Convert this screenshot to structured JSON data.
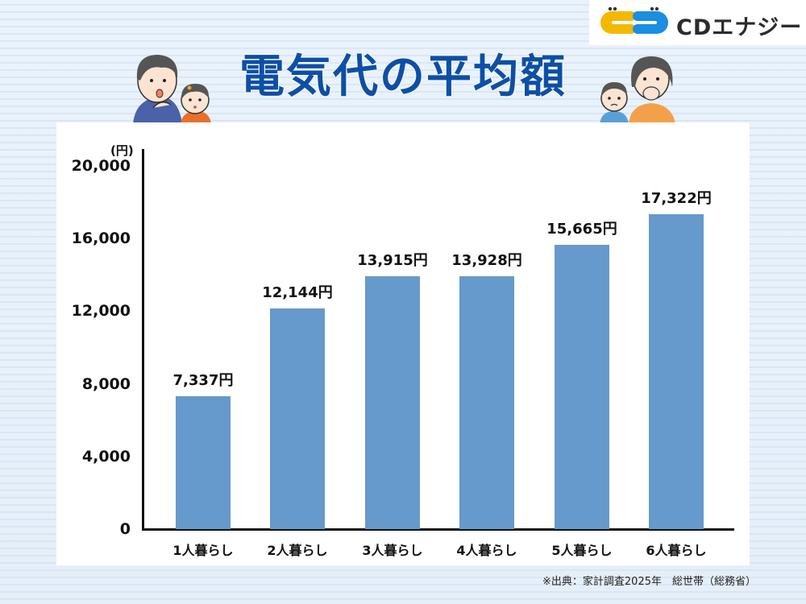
{
  "brand": {
    "name": "CDエナジー",
    "colors": {
      "yellow": "#f5b800",
      "blue": "#1a8ee0"
    }
  },
  "header": {
    "title": "電気代の平均額"
  },
  "illustrations": {
    "left": "family-father-daughter-surprised",
    "right": "family-mother-son-worried"
  },
  "chart_data": {
    "type": "bar",
    "title": "電気代の平均額",
    "xlabel": "",
    "ylabel": "(円)",
    "categories": [
      "1人暮らし",
      "2人暮らし",
      "3人暮らし",
      "4人暮らし",
      "5人暮らし",
      "6人暮らし"
    ],
    "values": [
      7337,
      12144,
      13915,
      13928,
      15665,
      17322
    ],
    "value_labels": [
      "7,337円",
      "12,144円",
      "13,915円",
      "13,928円",
      "15,665円",
      "17,322円"
    ],
    "ylim": [
      0,
      20000
    ],
    "yticks": [
      0,
      4000,
      8000,
      12000,
      16000,
      20000
    ],
    "ytick_labels": [
      "0",
      "4,000",
      "8,000",
      "12,000",
      "16,000",
      "20,000"
    ],
    "grid": false,
    "legend": null,
    "bar_color": "#6699cc",
    "source": "※出典：家計調査2025年　総世帯（総務省）"
  },
  "footer": {
    "source": "※出典：家計調査2025年　総世帯（総務省）"
  }
}
